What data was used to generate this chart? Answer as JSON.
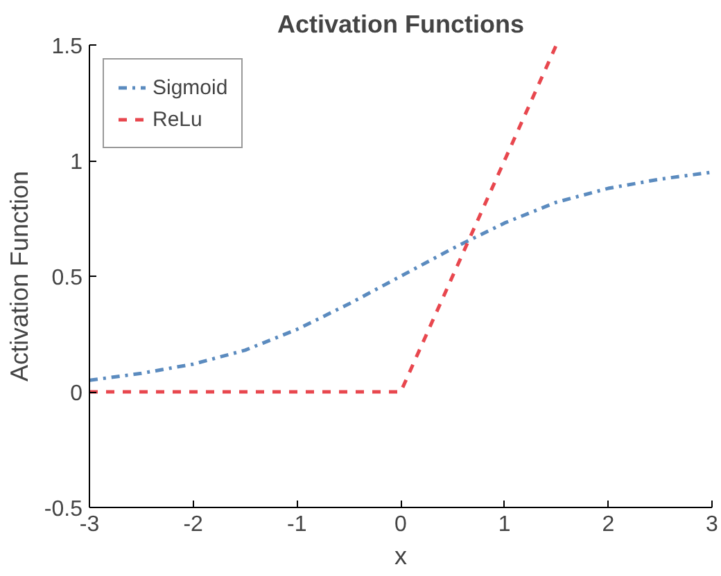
{
  "chart_data": {
    "type": "line",
    "title": "Activation Functions",
    "xlabel": "x",
    "ylabel": "Activation Function",
    "xlim": [
      -3,
      3
    ],
    "xticks": [
      -3,
      -2,
      -1,
      0,
      1,
      2,
      3
    ],
    "ylim": [
      -0.5,
      1.5
    ],
    "yticks": [
      -0.5,
      0,
      0.5,
      1,
      1.5
    ],
    "grid": false,
    "legend": "top left",
    "marker": "none",
    "series": [
      {
        "name": "Sigmoid",
        "color": "#5b8bbf",
        "line_style": "dashdot",
        "x": [
          -3,
          -2.5,
          -2,
          -1.5,
          -1,
          -0.5,
          0,
          0.5,
          1,
          1.5,
          2,
          2.5,
          3
        ],
        "values": [
          0.05,
          0.08,
          0.12,
          0.18,
          0.27,
          0.38,
          0.5,
          0.62,
          0.73,
          0.82,
          0.88,
          0.92,
          0.95
        ]
      },
      {
        "name": "ReLu",
        "color": "#e8474e",
        "line_style": "dashed",
        "x": [
          -3,
          0,
          1.5
        ],
        "values": [
          0,
          0,
          1.5
        ]
      }
    ]
  }
}
